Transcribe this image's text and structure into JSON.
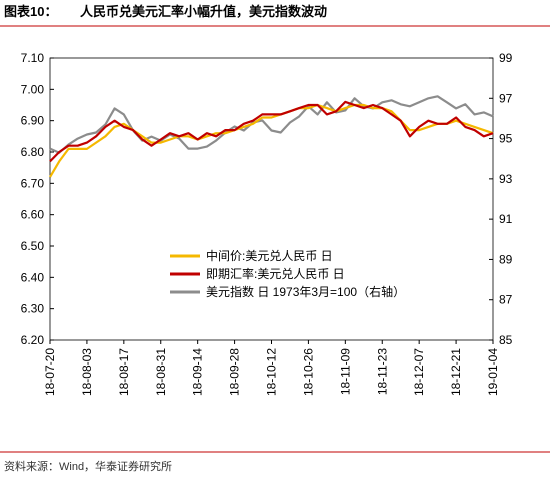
{
  "header": {
    "label": "图表10：",
    "title": "人民币兑美元汇率小幅升值，美元指数波动"
  },
  "chart_data": {
    "type": "line",
    "categories": [
      "18-07-20",
      null,
      null,
      null,
      "18-08-03",
      null,
      null,
      null,
      "18-08-17",
      null,
      null,
      null,
      "18-08-31",
      null,
      null,
      null,
      "18-09-14",
      null,
      null,
      null,
      "18-09-28",
      null,
      null,
      null,
      "18-10-12",
      null,
      null,
      null,
      "18-10-26",
      null,
      null,
      null,
      "18-11-09",
      null,
      null,
      null,
      "18-11-23",
      null,
      null,
      null,
      "18-12-07",
      null,
      null,
      null,
      "18-12-21",
      null,
      null,
      null,
      "19-01-04"
    ],
    "series": [
      {
        "name": "中间价:美元兑人民币 日",
        "color": "#f5b800",
        "values": [
          6.72,
          6.77,
          6.81,
          6.81,
          6.81,
          6.83,
          6.85,
          6.88,
          6.89,
          6.87,
          6.85,
          6.83,
          6.83,
          6.84,
          6.85,
          6.85,
          6.84,
          6.85,
          6.86,
          6.86,
          6.87,
          6.88,
          6.89,
          6.91,
          6.91,
          6.92,
          6.93,
          6.94,
          6.94,
          6.95,
          6.94,
          6.93,
          6.94,
          6.95,
          6.95,
          6.94,
          6.94,
          6.93,
          6.9,
          6.87,
          6.87,
          6.88,
          6.89,
          6.89,
          6.9,
          6.89,
          6.88,
          6.87,
          6.86
        ]
      },
      {
        "name": "即期汇率:美元兑人民币 日",
        "color": "#c00000",
        "values": [
          6.77,
          6.8,
          6.82,
          6.82,
          6.83,
          6.85,
          6.88,
          6.9,
          6.88,
          6.87,
          6.84,
          6.82,
          6.84,
          6.86,
          6.85,
          6.86,
          6.84,
          6.86,
          6.85,
          6.87,
          6.87,
          6.89,
          6.9,
          6.92,
          6.92,
          6.92,
          6.93,
          6.94,
          6.95,
          6.95,
          6.92,
          6.93,
          6.96,
          6.95,
          6.94,
          6.95,
          6.94,
          6.92,
          6.9,
          6.85,
          6.88,
          6.9,
          6.89,
          6.89,
          6.91,
          6.88,
          6.87,
          6.85,
          6.86
        ]
      },
      {
        "name": "美元指数 日 1973年3月=100（右轴）",
        "color": "#8c8c8c",
        "axis": "y2",
        "values": [
          94.5,
          94.3,
          94.7,
          95.0,
          95.2,
          95.3,
          95.7,
          96.5,
          96.2,
          95.4,
          94.9,
          95.1,
          94.9,
          95.2,
          95.0,
          94.5,
          94.5,
          94.6,
          94.9,
          95.3,
          95.6,
          95.4,
          95.8,
          95.9,
          95.4,
          95.3,
          95.8,
          96.1,
          96.6,
          96.2,
          96.8,
          96.3,
          96.4,
          97.0,
          96.6,
          96.5,
          96.8,
          96.9,
          96.7,
          96.6,
          96.8,
          97.0,
          97.1,
          96.8,
          96.5,
          96.7,
          96.2,
          96.3,
          96.1
        ]
      }
    ],
    "ylim": [
      6.2,
      7.1
    ],
    "yticks": [
      {
        "value": 6.2,
        "label": "6.20"
      },
      {
        "value": 6.3,
        "label": "6.30"
      },
      {
        "value": 6.4,
        "label": "6.40"
      },
      {
        "value": 6.5,
        "label": "6.50"
      },
      {
        "value": 6.6,
        "label": "6.60"
      },
      {
        "value": 6.7,
        "label": "6.70"
      },
      {
        "value": 6.8,
        "label": "6.80"
      },
      {
        "value": 6.9,
        "label": "6.90"
      },
      {
        "value": 7.0,
        "label": "7.00"
      },
      {
        "value": 7.1,
        "label": "7.10"
      }
    ],
    "y2lim": [
      85,
      99
    ],
    "y2ticks": [
      85,
      87,
      89,
      91,
      93,
      95,
      97,
      99
    ],
    "grid": false
  },
  "source": "资料来源：Wind，华泰证券研究所"
}
